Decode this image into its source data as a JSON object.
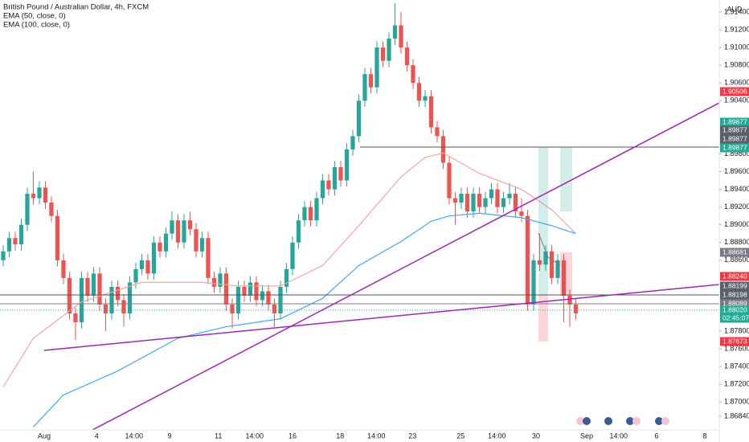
{
  "header": {
    "title": "British Pound / Australian Dollar, 4h, FXCM",
    "currency": "AUD"
  },
  "price_tags": [
    {
      "label": "1.90506",
      "color": "#f23645"
    },
    {
      "label": "1.89877",
      "color": "#22ab94"
    },
    {
      "label": "1.89877",
      "color": "#5d606b"
    },
    {
      "label": "1.89877",
      "color": "#5d606b"
    },
    {
      "label": "1.89877",
      "color": "#22ab94"
    },
    {
      "label": "1.88681",
      "color": "#787b86"
    },
    {
      "label": "1.88240",
      "color": "#f23645"
    },
    {
      "label": "1.88199",
      "color": "#5d606b"
    },
    {
      "label": "1.88198",
      "color": "#5d606b"
    },
    {
      "label": "1.88089",
      "color": "#787b86"
    },
    {
      "label": "1.88020",
      "color": "#22ab94"
    },
    {
      "label": "02:45:07",
      "color": "#22ab94"
    },
    {
      "label": "1.87673",
      "color": "#f23645"
    }
  ],
  "chart_data": {
    "type": "candlestick",
    "up_color": "#26a69a",
    "down_color": "#ef5350",
    "xlim": [
      -0.53,
      118.8
    ],
    "ylim": [
      1.8664,
      1.91536
    ],
    "grid": false,
    "xticks": [
      {
        "value": 6.8,
        "label": "Aug"
      },
      {
        "value": 15.5,
        "label": "4"
      },
      {
        "value": 21.7,
        "label": "14:00"
      },
      {
        "value": 27.6,
        "label": "9"
      },
      {
        "value": 35.7,
        "label": "11"
      },
      {
        "value": 41.7,
        "label": "14:00"
      },
      {
        "value": 48,
        "label": "16"
      },
      {
        "value": 55.9,
        "label": "18"
      },
      {
        "value": 61.9,
        "label": "14:00"
      },
      {
        "value": 67.9,
        "label": "23"
      },
      {
        "value": 75.9,
        "label": "25"
      },
      {
        "value": 81.9,
        "label": "14:00"
      },
      {
        "value": 88.4,
        "label": "30"
      },
      {
        "value": 96.8,
        "label": "Sep"
      },
      {
        "value": 102.1,
        "label": "14:00"
      },
      {
        "value": 108.4,
        "label": "6"
      },
      {
        "value": 116.4,
        "label": "8"
      }
    ],
    "yticks": [
      {
        "value": 1.914,
        "label": "1.91400"
      },
      {
        "value": 1.912,
        "label": "1.91200"
      },
      {
        "value": 1.91,
        "label": "1.91000"
      },
      {
        "value": 1.908,
        "label": "1.90800"
      },
      {
        "value": 1.906,
        "label": "1.90600"
      },
      {
        "value": 1.904,
        "label": "1.90400"
      },
      {
        "value": 1.898,
        "label": "1.89800"
      },
      {
        "value": 1.896,
        "label": "1.89600"
      },
      {
        "value": 1.894,
        "label": "1.89400"
      },
      {
        "value": 1.892,
        "label": "1.89200"
      },
      {
        "value": 1.89,
        "label": "1.89000"
      },
      {
        "value": 1.888,
        "label": "1.88800"
      },
      {
        "value": 1.886,
        "label": "1.88600"
      },
      {
        "value": 1.878,
        "label": "1.87800"
      },
      {
        "value": 1.876,
        "label": "1.87600"
      },
      {
        "value": 1.874,
        "label": "1.87400"
      },
      {
        "value": 1.872,
        "label": "1.87200"
      },
      {
        "value": 1.87,
        "label": "1.87000"
      },
      {
        "value": 1.8684,
        "label": "1.86840"
      }
    ],
    "ohlc": [
      [
        1.886,
        1.8877,
        1.8853,
        1.887
      ],
      [
        1.887,
        1.8892,
        1.8863,
        1.8885
      ],
      [
        1.8885,
        1.8892,
        1.8871,
        1.8878
      ],
      [
        1.8878,
        1.8907,
        1.8871,
        1.89
      ],
      [
        1.89,
        1.8942,
        1.8893,
        1.8935
      ],
      [
        1.8935,
        1.896,
        1.8923,
        1.893
      ],
      [
        1.893,
        1.8949,
        1.8923,
        1.8942
      ],
      [
        1.8942,
        1.8949,
        1.8918,
        1.8925
      ],
      [
        1.8925,
        1.8932,
        1.8903,
        1.891
      ],
      [
        1.891,
        1.8917,
        1.8853,
        1.886
      ],
      [
        1.886,
        1.8867,
        1.8833,
        1.884
      ],
      [
        1.884,
        1.8847,
        1.8793,
        1.88
      ],
      [
        1.88,
        1.8807,
        1.877,
        1.879
      ],
      [
        1.879,
        1.8847,
        1.8783,
        1.884
      ],
      [
        1.884,
        1.8847,
        1.8813,
        1.882
      ],
      [
        1.882,
        1.8852,
        1.8813,
        1.8845
      ],
      [
        1.8845,
        1.8852,
        1.8803,
        1.881
      ],
      [
        1.881,
        1.8817,
        1.878,
        1.88
      ],
      [
        1.88,
        1.8837,
        1.8793,
        1.883
      ],
      [
        1.883,
        1.8837,
        1.8808,
        1.8815
      ],
      [
        1.8815,
        1.8822,
        1.8785,
        1.88
      ],
      [
        1.88,
        1.8842,
        1.8793,
        1.8835
      ],
      [
        1.8835,
        1.8857,
        1.8828,
        1.885
      ],
      [
        1.885,
        1.8867,
        1.8843,
        1.886
      ],
      [
        1.886,
        1.8867,
        1.8838,
        1.8845
      ],
      [
        1.8845,
        1.8887,
        1.8838,
        1.888
      ],
      [
        1.888,
        1.8887,
        1.8863,
        1.887
      ],
      [
        1.887,
        1.8897,
        1.8863,
        1.889
      ],
      [
        1.889,
        1.8915,
        1.8883,
        1.8905
      ],
      [
        1.8905,
        1.8912,
        1.8873,
        1.888
      ],
      [
        1.888,
        1.8912,
        1.8873,
        1.8905
      ],
      [
        1.8905,
        1.8915,
        1.8888,
        1.8895
      ],
      [
        1.8895,
        1.8902,
        1.8863,
        1.887
      ],
      [
        1.887,
        1.8892,
        1.8863,
        1.8885
      ],
      [
        1.8885,
        1.8892,
        1.8833,
        1.884
      ],
      [
        1.884,
        1.8847,
        1.8823,
        1.883
      ],
      [
        1.883,
        1.8852,
        1.8823,
        1.8845
      ],
      [
        1.8845,
        1.8852,
        1.8803,
        1.881
      ],
      [
        1.881,
        1.8817,
        1.8783,
        1.88
      ],
      [
        1.88,
        1.8837,
        1.8793,
        1.883
      ],
      [
        1.883,
        1.8837,
        1.8813,
        1.882
      ],
      [
        1.882,
        1.8842,
        1.8813,
        1.8835
      ],
      [
        1.8835,
        1.8842,
        1.8808,
        1.8815
      ],
      [
        1.8815,
        1.8832,
        1.8808,
        1.8825
      ],
      [
        1.8825,
        1.8832,
        1.8803,
        1.881
      ],
      [
        1.881,
        1.8817,
        1.8785,
        1.88
      ],
      [
        1.88,
        1.8837,
        1.8793,
        1.883
      ],
      [
        1.883,
        1.8857,
        1.8823,
        1.885
      ],
      [
        1.885,
        1.8887,
        1.8843,
        1.888
      ],
      [
        1.888,
        1.8912,
        1.8873,
        1.8905
      ],
      [
        1.8905,
        1.8927,
        1.8898,
        1.892
      ],
      [
        1.892,
        1.8927,
        1.8898,
        1.8905
      ],
      [
        1.8905,
        1.8937,
        1.8898,
        1.893
      ],
      [
        1.893,
        1.8957,
        1.8923,
        1.895
      ],
      [
        1.895,
        1.8957,
        1.8933,
        1.894
      ],
      [
        1.894,
        1.8972,
        1.8933,
        1.8965
      ],
      [
        1.8965,
        1.8972,
        1.8943,
        1.895
      ],
      [
        1.895,
        1.8992,
        1.8943,
        1.8985
      ],
      [
        1.8985,
        1.9007,
        1.8978,
        1.9
      ],
      [
        1.9,
        1.9047,
        1.8993,
        1.904
      ],
      [
        1.904,
        1.9077,
        1.9033,
        1.907
      ],
      [
        1.907,
        1.9077,
        1.9048,
        1.9055
      ],
      [
        1.9055,
        1.9107,
        1.9048,
        1.91
      ],
      [
        1.91,
        1.9107,
        1.9078,
        1.9085
      ],
      [
        1.9085,
        1.9117,
        1.9078,
        1.911
      ],
      [
        1.911,
        1.915,
        1.9103,
        1.9125
      ],
      [
        1.9125,
        1.914,
        1.9093,
        1.91
      ],
      [
        1.91,
        1.9107,
        1.9073,
        1.908
      ],
      [
        1.908,
        1.9087,
        1.9053,
        1.906
      ],
      [
        1.906,
        1.9067,
        1.9033,
        1.904
      ],
      [
        1.904,
        1.9052,
        1.9033,
        1.9045
      ],
      [
        1.9045,
        1.9052,
        1.9003,
        1.901
      ],
      [
        1.901,
        1.9017,
        1.8993,
        1.9
      ],
      [
        1.9,
        1.9007,
        1.8963,
        1.897
      ],
      [
        1.897,
        1.8977,
        1.8923,
        1.893
      ],
      [
        1.893,
        1.8937,
        1.89,
        1.8925
      ],
      [
        1.8925,
        1.8942,
        1.8918,
        1.8935
      ],
      [
        1.8935,
        1.8942,
        1.8908,
        1.8915
      ],
      [
        1.8915,
        1.8942,
        1.8908,
        1.8935
      ],
      [
        1.8935,
        1.8942,
        1.8913,
        1.892
      ],
      [
        1.892,
        1.8937,
        1.8913,
        1.893
      ],
      [
        1.893,
        1.8947,
        1.8923,
        1.894
      ],
      [
        1.894,
        1.8947,
        1.8913,
        1.892
      ],
      [
        1.892,
        1.8937,
        1.8913,
        1.893
      ],
      [
        1.893,
        1.8947,
        1.8923,
        1.8935
      ],
      [
        1.8935,
        1.8942,
        1.8908,
        1.8915
      ],
      [
        1.8915,
        1.893,
        1.8903,
        1.891
      ],
      [
        1.891,
        1.8917,
        1.8803,
        1.881
      ],
      [
        1.881,
        1.8867,
        1.8803,
        1.886
      ],
      [
        1.886,
        1.889,
        1.8848,
        1.8855
      ],
      [
        1.8855,
        1.8877,
        1.8848,
        1.887
      ],
      [
        1.887,
        1.8877,
        1.8833,
        1.884
      ],
      [
        1.884,
        1.8867,
        1.8833,
        1.886
      ],
      [
        1.886,
        1.8867,
        1.879,
        1.882
      ],
      [
        1.882,
        1.8827,
        1.8785,
        1.881
      ],
      [
        1.881,
        1.8817,
        1.8793,
        1.88
      ]
    ],
    "series": [
      {
        "name": "EMA (50, close, 0)",
        "color": "#f6a4a2",
        "x": [
          0,
          5,
          13,
          23,
          33,
          39,
          46,
          53,
          59,
          66,
          70,
          73,
          79,
          86,
          91,
          95
        ],
        "values": [
          1.8717,
          1.8772,
          1.8813,
          1.8835,
          1.8835,
          1.8831,
          1.8831,
          1.8854,
          1.8899,
          1.8954,
          1.8976,
          1.8981,
          1.8958,
          1.894,
          1.8917,
          1.889
        ]
      },
      {
        "name": "EMA (100, close, 0)",
        "color": "#42a5f5",
        "x": [
          5,
          10,
          19,
          29,
          37,
          46,
          53,
          59,
          66,
          71,
          74,
          79,
          86,
          91,
          95
        ],
        "values": [
          1.8672,
          1.8708,
          1.8735,
          1.8772,
          1.8785,
          1.8794,
          1.8817,
          1.8854,
          1.8881,
          1.8904,
          1.891,
          1.8913,
          1.8908,
          1.8899,
          1.889
        ]
      }
    ]
  }
}
